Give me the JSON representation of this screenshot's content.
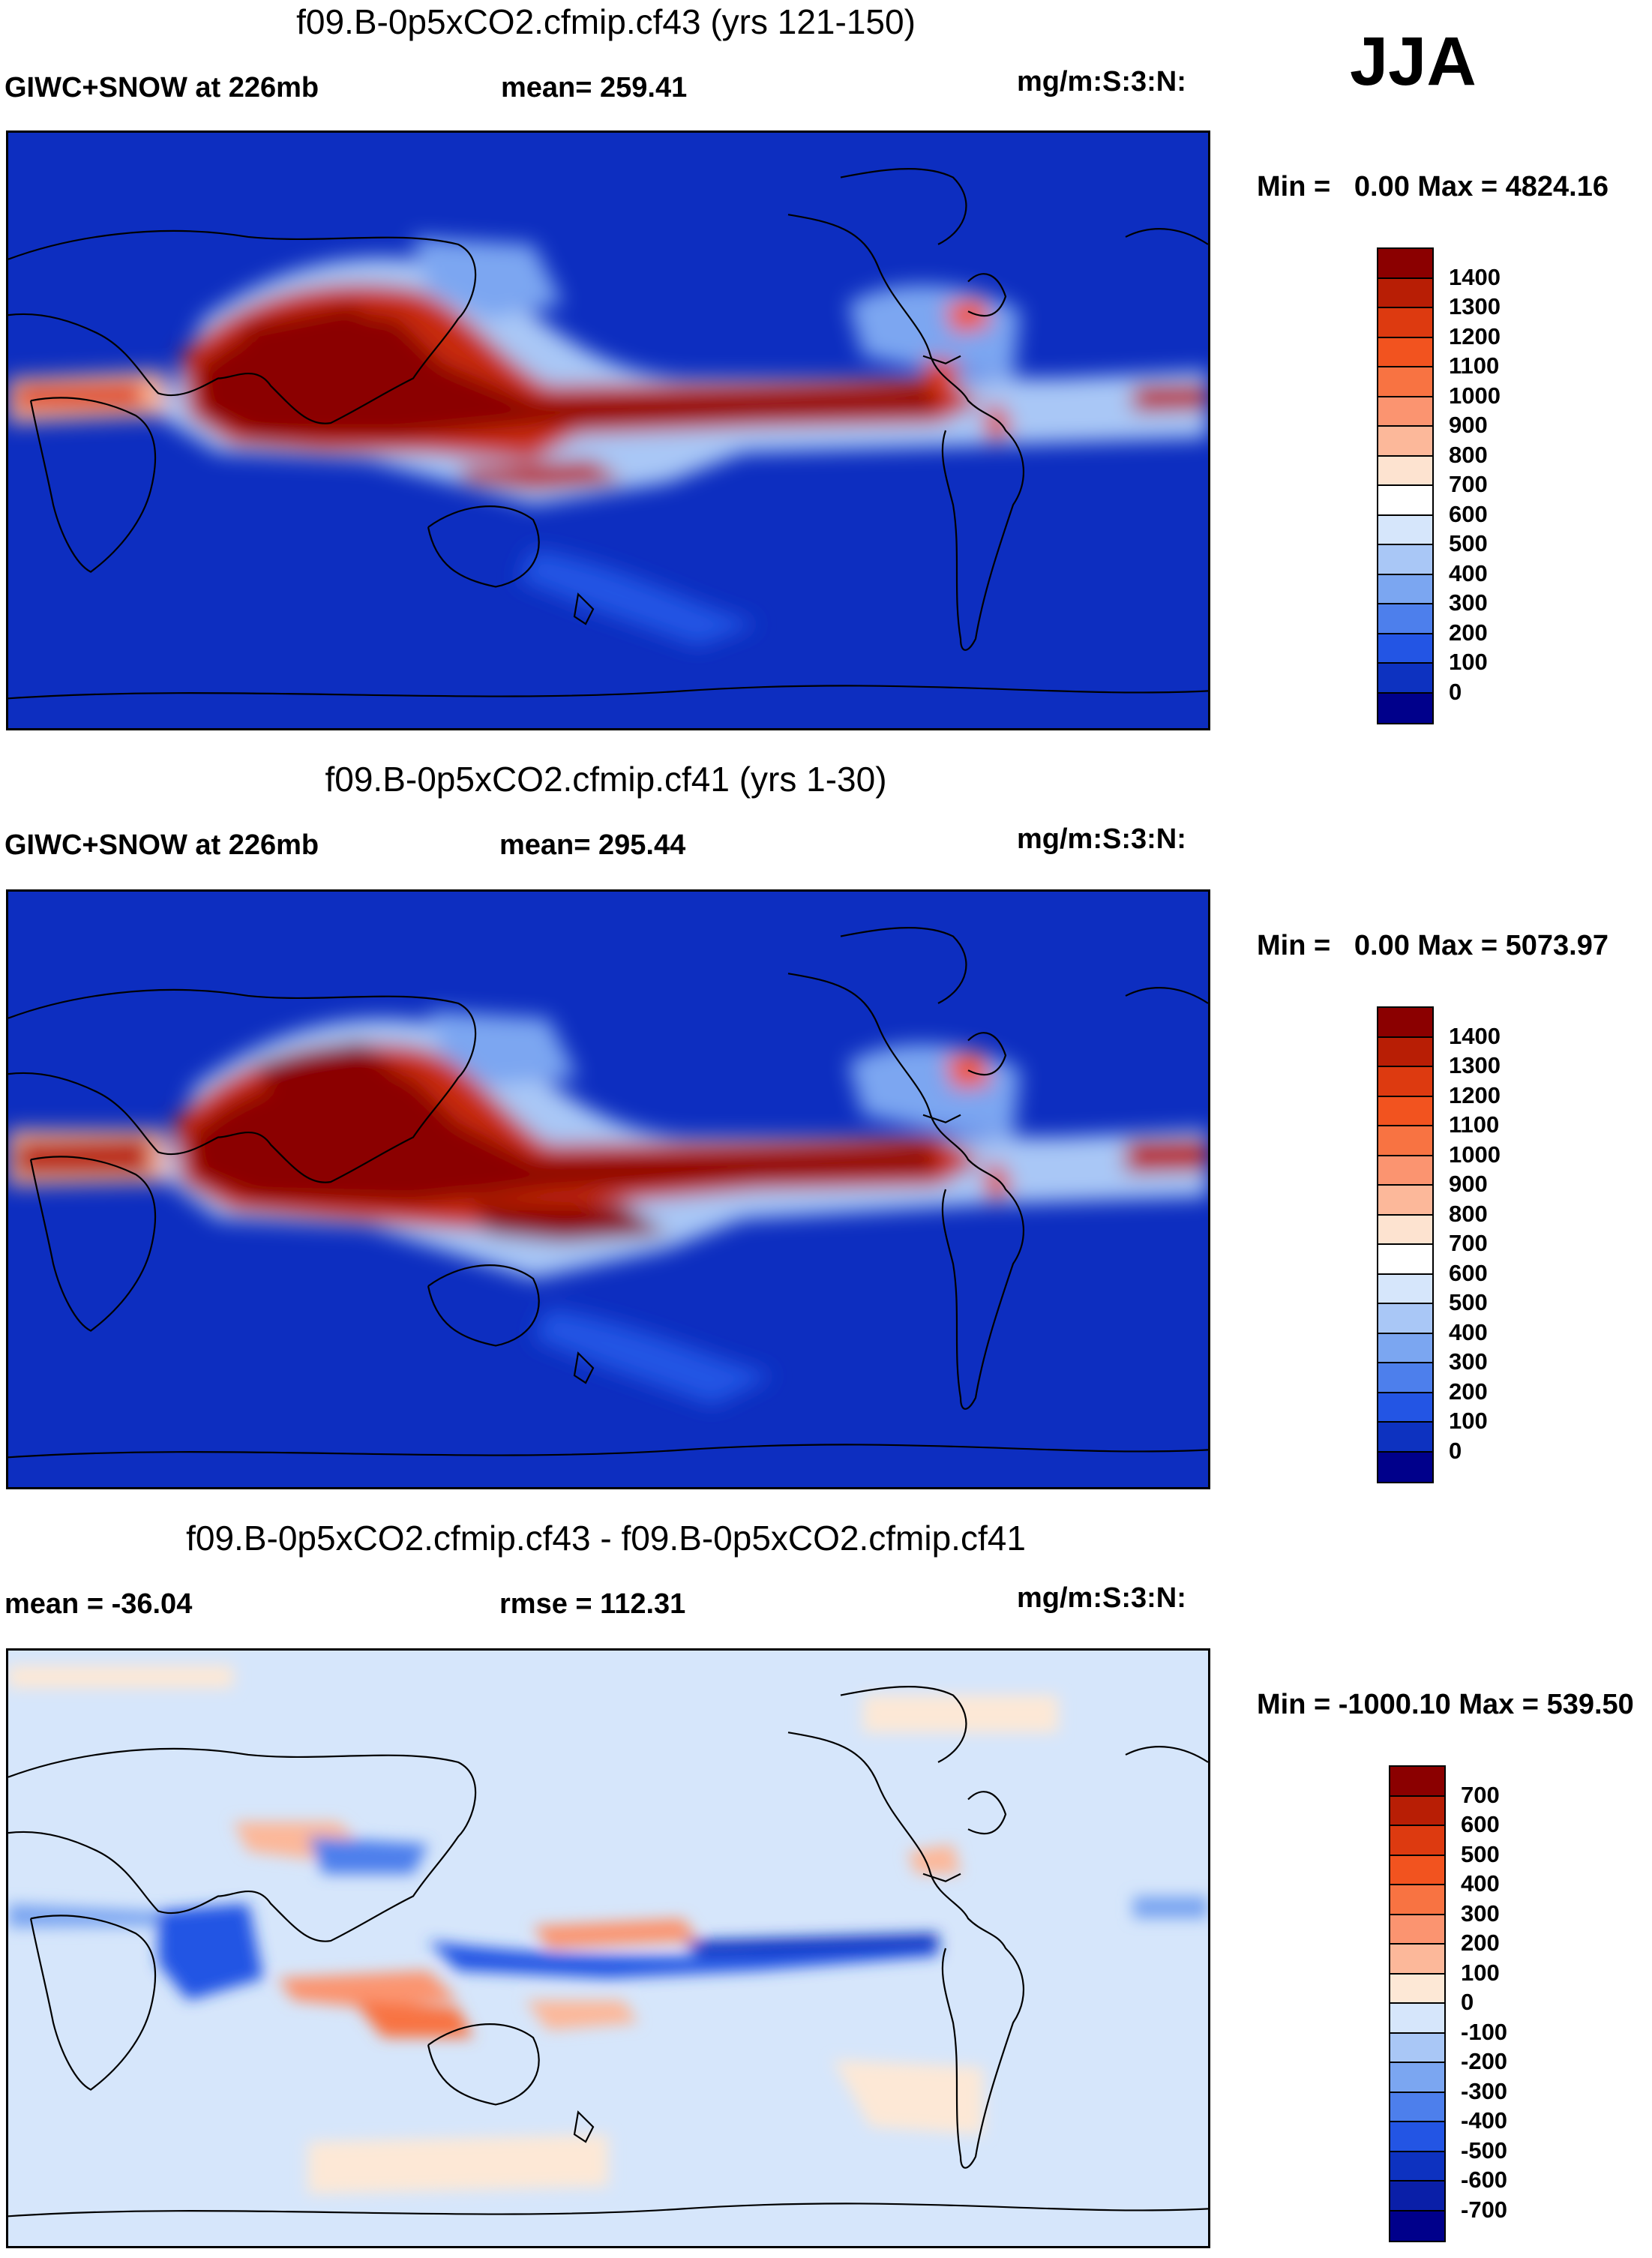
{
  "season": "JJA",
  "panels": [
    {
      "title": "f09.B-0p5xCO2.cfmip.cf43 (yrs 121-150)",
      "left_label": "GIWC+SNOW at 226mb",
      "center_label": "mean= 259.41",
      "units": "mg/m:S:3:N:",
      "min_label": "Min =",
      "min_value": "0.00",
      "max_label": "Max =",
      "max_value": "4824.16"
    },
    {
      "title": "f09.B-0p5xCO2.cfmip.cf41 (yrs 1-30)",
      "left_label": "GIWC+SNOW at 226mb",
      "center_label": "mean= 295.44",
      "units": "mg/m:S:3:N:",
      "min_label": "Min =",
      "min_value": "0.00",
      "max_label": "Max =",
      "max_value": "5073.97"
    },
    {
      "title": "f09.B-0p5xCO2.cfmip.cf43 - f09.B-0p5xCO2.cfmip.cf41",
      "left_label": "mean = -36.04",
      "center_label": "rmse = 112.31",
      "units": "mg/m:S:3:N:",
      "min_label": "Min =",
      "min_value": "-1000.10",
      "max_label": "Max =",
      "max_value": "539.50"
    }
  ],
  "colorbars": {
    "absolute": {
      "labels": [
        "1400",
        "1300",
        "1200",
        "1100",
        "1000",
        "900",
        "800",
        "700",
        "600",
        "500",
        "400",
        "300",
        "200",
        "100",
        "0"
      ],
      "colors": [
        "#8b0000",
        "#b81e05",
        "#dd3a10",
        "#f2531f",
        "#f87342",
        "#fb9470",
        "#fcb89a",
        "#fde3d0",
        "#ffffff",
        "#d6e6fb",
        "#a9c7f6",
        "#7ba6f1",
        "#4d7fec",
        "#2355e4",
        "#0d32c0",
        "#00008b"
      ]
    },
    "difference": {
      "labels": [
        "700",
        "600",
        "500",
        "400",
        "300",
        "200",
        "100",
        "0",
        "-100",
        "-200",
        "-300",
        "-400",
        "-500",
        "-600",
        "-700"
      ],
      "colors": [
        "#8b0000",
        "#b81e05",
        "#dd3a10",
        "#f2531f",
        "#f87342",
        "#fb9470",
        "#fcb89a",
        "#fde8d6",
        "#d6e6fb",
        "#a9c7f6",
        "#7ba6f1",
        "#4d7fec",
        "#2355e4",
        "#0d32c0",
        "#0a1fa8",
        "#00008b"
      ]
    }
  },
  "map_colors": {
    "ocean_low": "#0d2ec0",
    "diff_background": "#d6e6fb",
    "coast": "#000000"
  }
}
